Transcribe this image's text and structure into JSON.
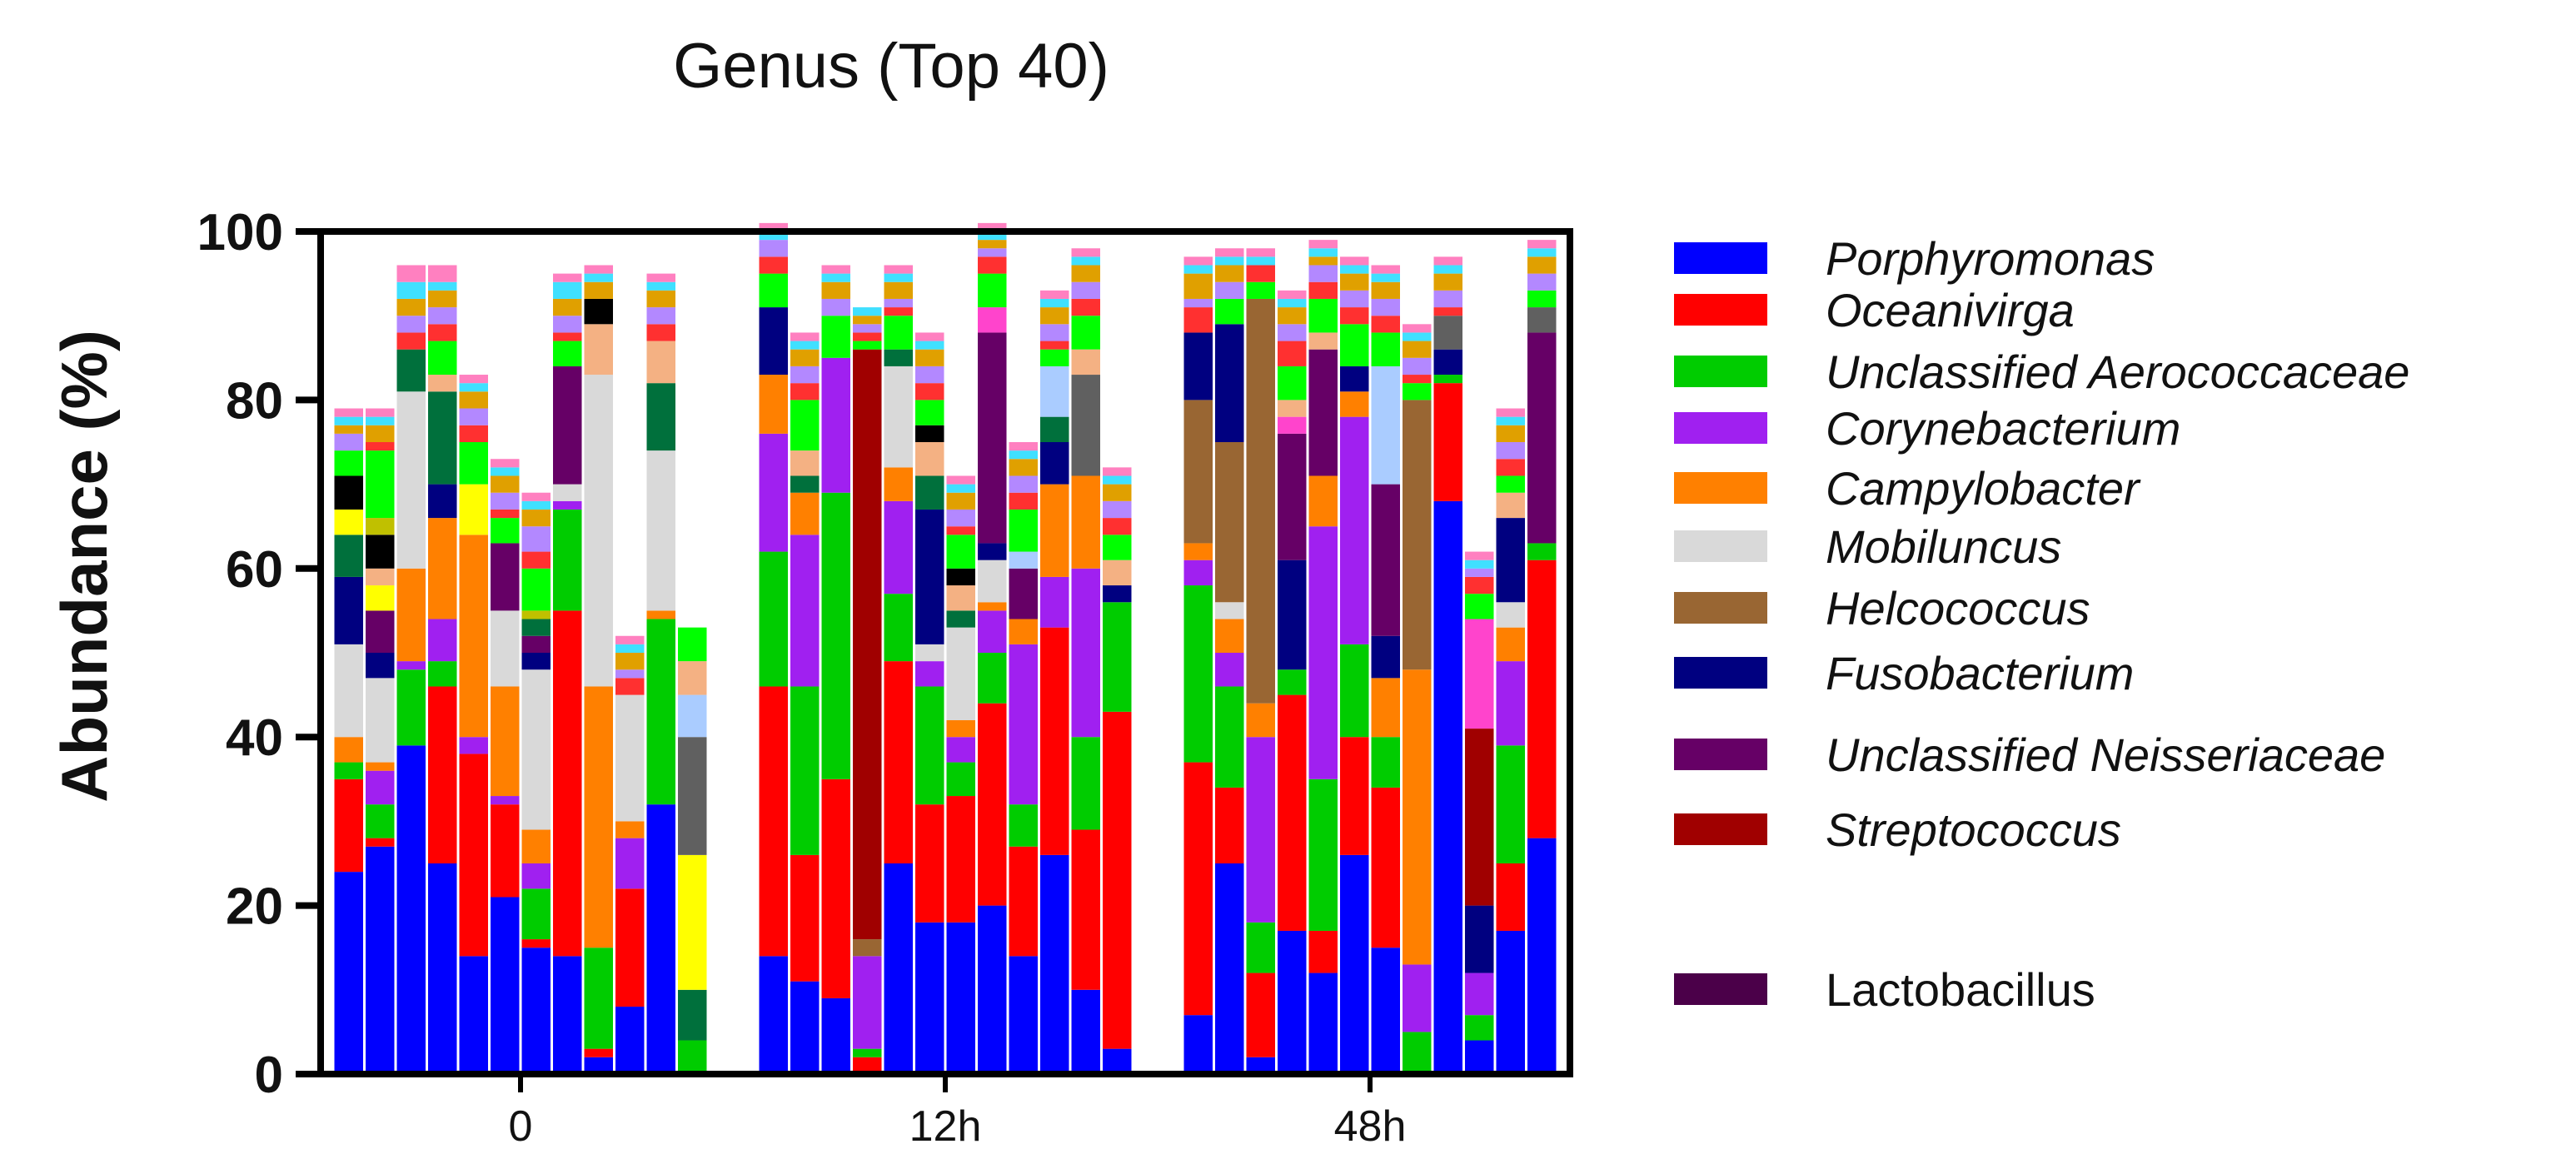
{
  "chart_data": {
    "type": "bar",
    "stacked": true,
    "title": "Genus (Top 40)",
    "ylabel": "Abundance (%)",
    "xlabel": "",
    "ylim": [
      0,
      100
    ],
    "yticks": [
      "0",
      "20",
      "40",
      "60",
      "80",
      "100"
    ],
    "groups": [
      {
        "label": "0",
        "n_samples": 12
      },
      {
        "label": "12h",
        "n_samples": 12
      },
      {
        "label": "48h",
        "n_samples": 12
      }
    ],
    "series": [
      {
        "name": "Porphyromonas",
        "color": "#0000ff",
        "italic": true,
        "values": [
          24,
          27,
          39,
          25,
          14,
          21,
          15,
          14,
          2,
          8,
          32,
          0,
          14,
          11,
          9,
          0,
          25,
          18,
          18,
          20,
          14,
          26,
          10,
          3,
          7,
          25,
          2,
          17,
          12,
          26,
          15,
          0,
          68,
          4,
          17,
          28
        ]
      },
      {
        "name": "Oceanivirga",
        "color": "#ff0000",
        "italic": true,
        "values": [
          11,
          1,
          0,
          21,
          24,
          11,
          1,
          41,
          1,
          14,
          0,
          0,
          32,
          15,
          26,
          2,
          24,
          14,
          15,
          24,
          13,
          27,
          19,
          40,
          30,
          9,
          10,
          28,
          5,
          14,
          19,
          0,
          14,
          0,
          8,
          33
        ]
      },
      {
        "name": "Unclassified Aerococcaceae",
        "color": "#00cc00",
        "italic": true,
        "values": [
          2,
          4,
          9,
          3,
          0,
          0,
          6,
          12,
          12,
          0,
          22,
          4,
          16,
          20,
          34,
          1,
          8,
          14,
          4,
          6,
          5,
          0,
          11,
          13,
          21,
          12,
          6,
          3,
          18,
          11,
          6,
          5,
          1,
          3,
          14,
          2
        ]
      },
      {
        "name": "Corynebacterium",
        "color": "#a020f0",
        "italic": true,
        "values": [
          0,
          4,
          1,
          5,
          2,
          1,
          3,
          1,
          0,
          6,
          0,
          0,
          14,
          18,
          16,
          11,
          11,
          3,
          3,
          5,
          19,
          6,
          20,
          0,
          3,
          4,
          22,
          0,
          30,
          27,
          0,
          8,
          0,
          5,
          10,
          0
        ]
      },
      {
        "name": "Campylobacter",
        "color": "#ff8000",
        "italic": true,
        "values": [
          3,
          1,
          11,
          12,
          24,
          13,
          4,
          0,
          31,
          2,
          1,
          0,
          7,
          5,
          0,
          0,
          4,
          0,
          2,
          1,
          3,
          11,
          11,
          0,
          2,
          4,
          4,
          0,
          6,
          3,
          7,
          35,
          0,
          0,
          4,
          0
        ]
      },
      {
        "name": "Mobiluncus",
        "color": "#d9d9d9",
        "italic": true,
        "values": [
          11,
          10,
          21,
          0,
          0,
          9,
          19,
          2,
          37,
          15,
          19,
          0,
          0,
          0,
          0,
          0,
          12,
          2,
          11,
          5,
          0,
          0,
          0,
          0,
          0,
          2,
          0,
          0,
          0,
          0,
          0,
          0,
          0,
          0,
          3,
          0
        ]
      },
      {
        "name": "Helcococcus",
        "color": "#996633",
        "italic": true,
        "values": [
          0,
          0,
          0,
          0,
          0,
          0,
          0,
          0,
          0,
          0,
          0,
          0,
          0,
          0,
          0,
          2,
          0,
          0,
          0,
          0,
          0,
          0,
          0,
          0,
          17,
          19,
          48,
          0,
          0,
          0,
          0,
          32,
          0,
          0,
          0,
          0
        ]
      },
      {
        "name": "Fusobacterium",
        "color": "#000080",
        "italic": true,
        "values": [
          8,
          3,
          0,
          4,
          0,
          0,
          2,
          0,
          0,
          0,
          0,
          0,
          8,
          0,
          0,
          0,
          0,
          16,
          0,
          2,
          0,
          5,
          0,
          2,
          8,
          14,
          0,
          13,
          0,
          3,
          5,
          0,
          3,
          8,
          10,
          0
        ]
      },
      {
        "name": "Unclassified Neisseriaceae",
        "color": "#660066",
        "italic": true,
        "values": [
          0,
          5,
          0,
          0,
          0,
          8,
          2,
          14,
          0,
          0,
          0,
          0,
          0,
          0,
          0,
          0,
          0,
          0,
          0,
          25,
          6,
          0,
          0,
          0,
          0,
          0,
          0,
          15,
          15,
          0,
          18,
          0,
          0,
          0,
          0,
          25
        ]
      },
      {
        "name": "Streptococcus",
        "color": "#a00000",
        "italic": true,
        "values": [
          0,
          0,
          0,
          0,
          0,
          0,
          0,
          0,
          0,
          0,
          0,
          0,
          0,
          0,
          0,
          70,
          0,
          0,
          0,
          0,
          0,
          0,
          0,
          0,
          0,
          0,
          0,
          0,
          0,
          0,
          0,
          0,
          0,
          21,
          0,
          0
        ]
      },
      {
        "name": "Lactobacillus",
        "color": "#4b0049",
        "italic": false,
        "values": [
          0,
          0,
          0,
          0,
          0,
          0,
          0,
          0,
          0,
          0,
          0,
          0,
          0,
          0,
          0,
          0,
          0,
          0,
          0,
          0,
          0,
          0,
          0,
          0,
          0,
          0,
          0,
          0,
          0,
          0,
          0,
          0,
          0,
          0,
          0,
          0
        ]
      },
      {
        "name": "",
        "color": "#00703c",
        "values": [
          5,
          0,
          5,
          11,
          0,
          0,
          2,
          0,
          0,
          0,
          8,
          6,
          0,
          2,
          0,
          0,
          2,
          4,
          2,
          0,
          0,
          3,
          0,
          0,
          0,
          0,
          0,
          0,
          0,
          0,
          0,
          0,
          0,
          0,
          0,
          0
        ]
      },
      {
        "name": "",
        "color": "#ffff00",
        "values": [
          3,
          3,
          0,
          0,
          6,
          0,
          0,
          0,
          0,
          0,
          0,
          16,
          0,
          0,
          0,
          0,
          0,
          0,
          0,
          0,
          0,
          0,
          0,
          0,
          0,
          0,
          0,
          0,
          0,
          0,
          0,
          0,
          0,
          0,
          0,
          0
        ]
      },
      {
        "name": "",
        "color": "#606060",
        "values": [
          0,
          0,
          0,
          0,
          0,
          0,
          0,
          0,
          0,
          0,
          0,
          14,
          0,
          0,
          0,
          0,
          0,
          0,
          0,
          0,
          0,
          0,
          12,
          0,
          0,
          0,
          0,
          0,
          0,
          0,
          0,
          0,
          4,
          0,
          0,
          3
        ]
      },
      {
        "name": "",
        "color": "#ff44cc",
        "values": [
          0,
          0,
          0,
          0,
          0,
          0,
          0,
          0,
          0,
          0,
          0,
          0,
          0,
          0,
          0,
          0,
          0,
          0,
          0,
          3,
          0,
          0,
          0,
          0,
          0,
          0,
          0,
          2,
          0,
          0,
          0,
          0,
          0,
          13,
          0,
          0
        ]
      },
      {
        "name": "",
        "color": "#aaccff",
        "values": [
          0,
          0,
          0,
          0,
          0,
          0,
          0,
          0,
          0,
          0,
          0,
          5,
          0,
          0,
          0,
          0,
          0,
          0,
          0,
          0,
          2,
          6,
          0,
          0,
          0,
          0,
          0,
          0,
          0,
          0,
          14,
          0,
          0,
          0,
          0,
          0
        ]
      },
      {
        "name": "",
        "color": "#f4b183",
        "values": [
          0,
          2,
          0,
          2,
          0,
          0,
          0,
          0,
          6,
          0,
          5,
          4,
          0,
          3,
          0,
          0,
          0,
          4,
          3,
          0,
          0,
          0,
          3,
          3,
          0,
          0,
          0,
          2,
          2,
          0,
          0,
          0,
          0,
          0,
          3,
          0
        ]
      },
      {
        "name": "",
        "color": "#000000",
        "values": [
          4,
          4,
          0,
          0,
          0,
          0,
          0,
          0,
          3,
          0,
          0,
          0,
          0,
          0,
          0,
          0,
          0,
          2,
          2,
          0,
          0,
          0,
          0,
          0,
          0,
          0,
          0,
          0,
          0,
          0,
          0,
          0,
          0,
          0,
          0,
          0
        ]
      },
      {
        "name": "",
        "color": "#c0c000",
        "values": [
          0,
          2,
          0,
          0,
          0,
          0,
          1,
          0,
          0,
          0,
          0,
          0,
          0,
          0,
          0,
          0,
          0,
          0,
          0,
          0,
          0,
          0,
          0,
          0,
          0,
          0,
          0,
          0,
          0,
          0,
          0,
          0,
          0,
          0,
          0,
          0
        ]
      },
      {
        "name": "",
        "color": "#00ff00",
        "values": [
          3,
          8,
          0,
          4,
          5,
          3,
          5,
          3,
          0,
          0,
          0,
          4,
          4,
          6,
          5,
          1,
          4,
          3,
          4,
          4,
          5,
          2,
          4,
          3,
          0,
          3,
          2,
          4,
          4,
          5,
          4,
          2,
          0,
          3,
          2,
          2
        ]
      },
      {
        "name": "",
        "color": "#ff3030",
        "values": [
          0,
          1,
          2,
          2,
          2,
          1,
          2,
          1,
          0,
          2,
          2,
          0,
          2,
          2,
          0,
          1,
          1,
          2,
          1,
          2,
          2,
          1,
          2,
          2,
          3,
          0,
          2,
          3,
          2,
          2,
          2,
          1,
          1,
          2,
          2,
          0
        ]
      },
      {
        "name": "",
        "color": "#b388ff",
        "values": [
          2,
          0,
          2,
          2,
          2,
          2,
          3,
          2,
          0,
          1,
          2,
          0,
          2,
          2,
          2,
          1,
          1,
          2,
          2,
          1,
          2,
          2,
          2,
          2,
          1,
          2,
          0,
          2,
          2,
          2,
          2,
          2,
          2,
          1,
          2,
          2
        ]
      },
      {
        "name": "",
        "color": "#e0a000",
        "values": [
          1,
          2,
          2,
          2,
          2,
          2,
          2,
          2,
          2,
          2,
          2,
          0,
          0,
          2,
          2,
          1,
          2,
          2,
          2,
          1,
          2,
          2,
          2,
          2,
          3,
          2,
          0,
          2,
          1,
          2,
          2,
          2,
          2,
          0,
          2,
          2
        ]
      },
      {
        "name": "",
        "color": "#40e0ff",
        "values": [
          1,
          1,
          2,
          1,
          1,
          1,
          1,
          2,
          1,
          1,
          1,
          0,
          1,
          1,
          1,
          1,
          1,
          1,
          1,
          1,
          1,
          1,
          1,
          1,
          1,
          1,
          1,
          1,
          1,
          1,
          1,
          1,
          1,
          1,
          1,
          1
        ]
      },
      {
        "name": "",
        "color": "#ff80c0",
        "values": [
          1,
          1,
          2,
          2,
          1,
          1,
          1,
          1,
          1,
          1,
          1,
          0,
          1,
          1,
          1,
          0,
          1,
          1,
          1,
          1,
          1,
          1,
          1,
          1,
          1,
          1,
          1,
          1,
          1,
          1,
          1,
          1,
          1,
          1,
          1,
          1
        ]
      }
    ],
    "legend": {
      "placement": "right",
      "entries": [
        {
          "name": "Porphyromonas",
          "color": "#0000ff",
          "italic": true
        },
        {
          "name": "Oceanivirga",
          "color": "#ff0000",
          "italic": true
        },
        {
          "name": "Unclassified Aerococcaceae",
          "color": "#00cc00",
          "italic": true
        },
        {
          "name": "Corynebacterium",
          "color": "#a020f0",
          "italic": true
        },
        {
          "name": "Campylobacter",
          "color": "#ff8000",
          "italic": true
        },
        {
          "name": "Mobiluncus",
          "color": "#d9d9d9",
          "italic": true
        },
        {
          "name": "Helcococcus",
          "color": "#996633",
          "italic": true
        },
        {
          "name": "Fusobacterium",
          "color": "#000080",
          "italic": true
        },
        {
          "name": "Unclassified Neisseriaceae",
          "color": "#660066",
          "italic": true
        },
        {
          "name": "Streptococcus",
          "color": "#a00000",
          "italic": true
        },
        {
          "name": "Lactobacillus",
          "color": "#4b0049",
          "italic": false
        }
      ]
    },
    "grid": false
  }
}
